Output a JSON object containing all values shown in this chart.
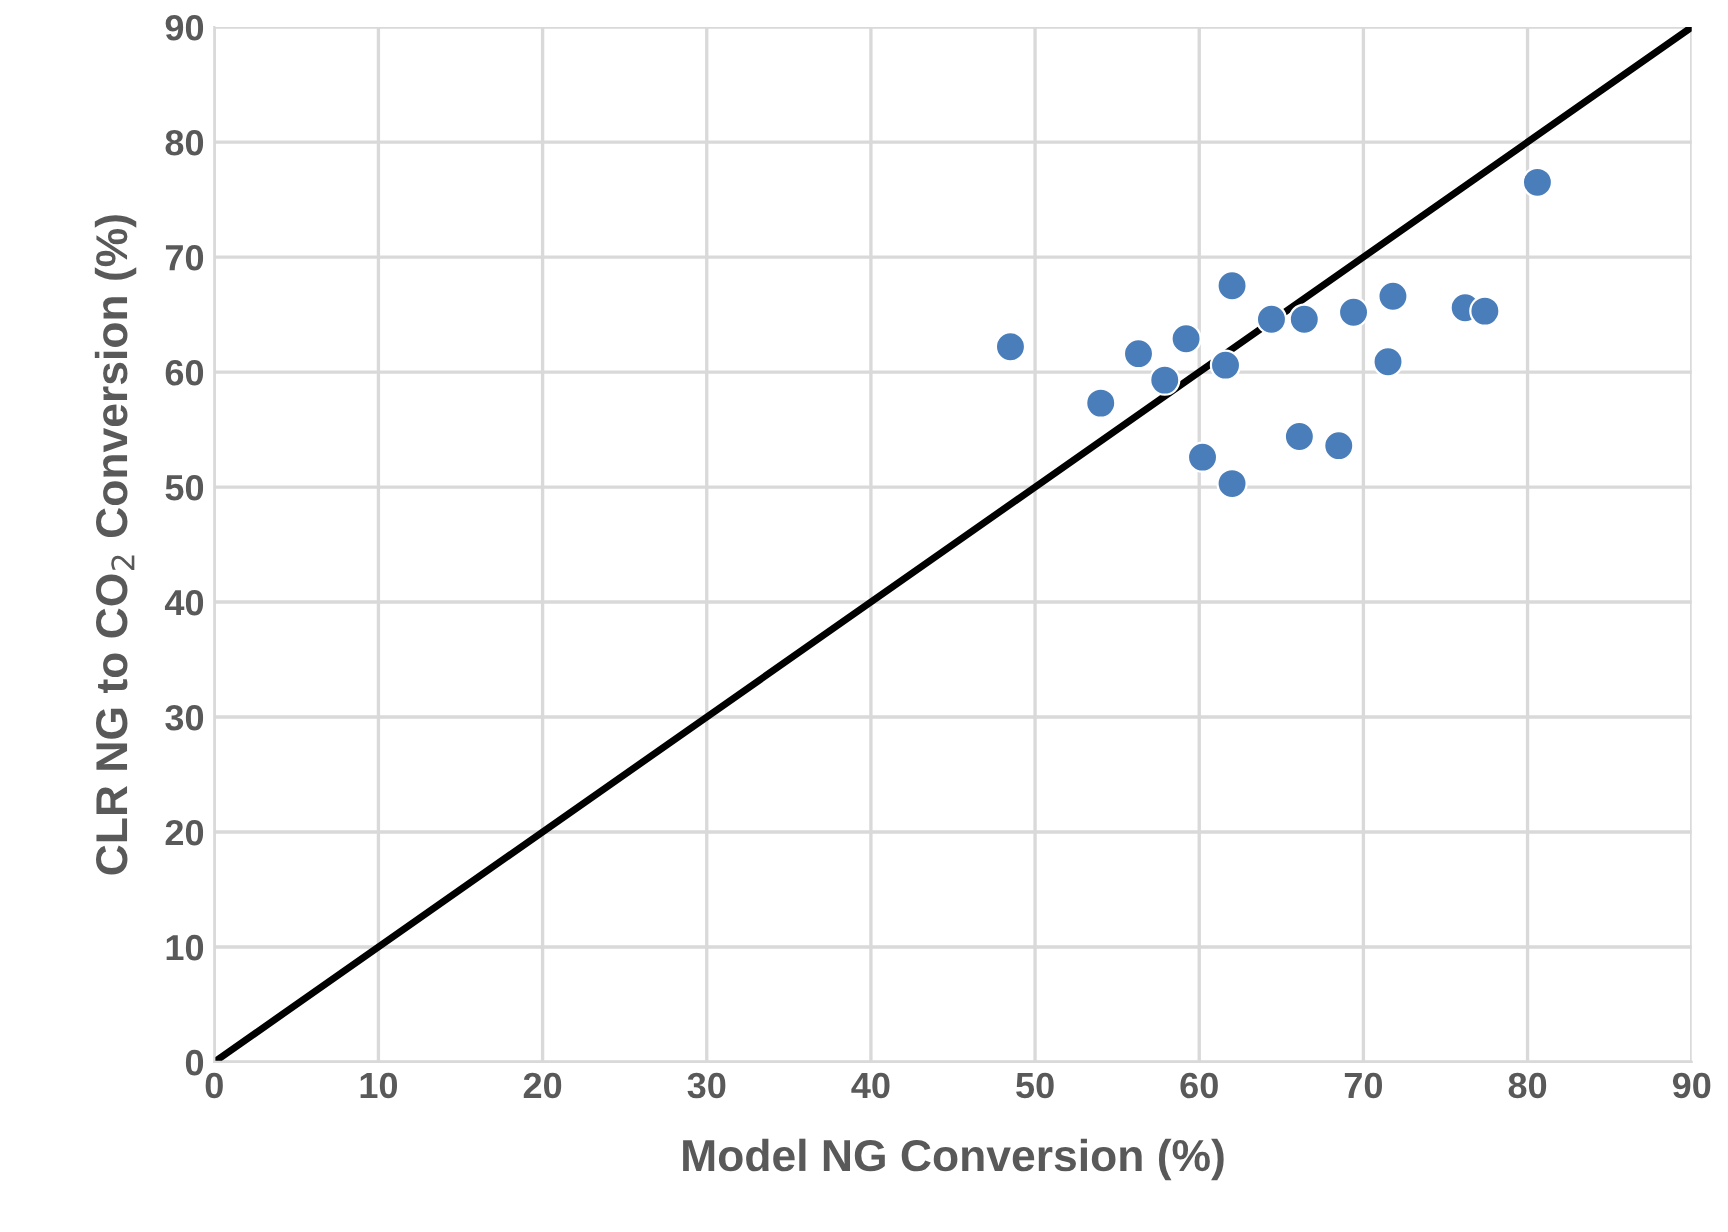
{
  "chart_data": {
    "type": "scatter",
    "xlabel": "Model NG Conversion (%)",
    "ylabel": "CLR NG to CO$_{2}$ Conversion (%)",
    "xlim": [
      0,
      90
    ],
    "ylim": [
      0,
      90
    ],
    "xticks": [
      0,
      10,
      20,
      30,
      40,
      50,
      60,
      70,
      80,
      90
    ],
    "yticks": [
      0,
      10,
      20,
      30,
      40,
      50,
      60,
      70,
      80,
      90
    ],
    "grid": true,
    "legend": false,
    "series": [
      {
        "color": "#4a7ebb",
        "marker": "circle",
        "x": [
          48.5,
          54,
          56.3,
          57.9,
          59.2,
          60.2,
          61.6,
          62,
          62,
          64.4,
          66.1,
          66.4,
          68.5,
          69.4,
          71.5,
          71.8,
          76.2,
          77.4,
          80.6
        ],
        "values": [
          62.2,
          57.3,
          61.6,
          59.3,
          62.9,
          52.6,
          60.6,
          67.5,
          50.3,
          64.6,
          54.4,
          64.6,
          53.6,
          65.2,
          60.9,
          66.6,
          65.6,
          65.3,
          76.5
        ]
      },
      {
        "type": "line",
        "color": "#000000",
        "x": [
          0,
          90
        ],
        "values": [
          0,
          90
        ],
        "line_style": "solid",
        "marker": "none"
      }
    ]
  }
}
